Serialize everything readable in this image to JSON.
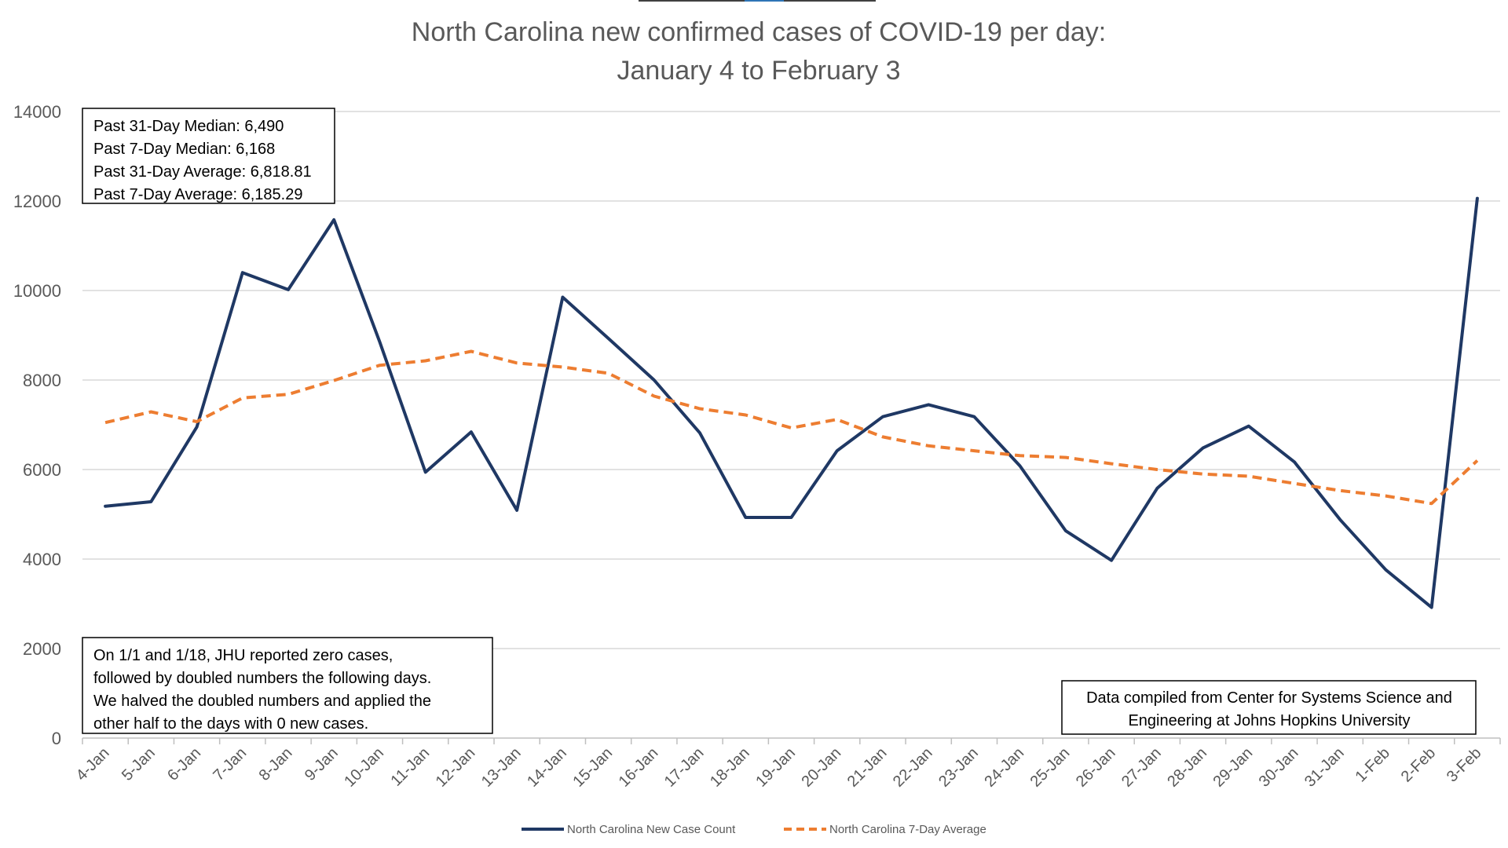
{
  "chart_data": {
    "type": "line",
    "title": [
      "North Carolina new confirmed cases of COVID-19 per day:",
      "January 4 to February 3"
    ],
    "xlabel": "",
    "ylabel": "",
    "ylim": [
      0,
      14000
    ],
    "yticks": [
      0,
      2000,
      4000,
      6000,
      8000,
      10000,
      12000,
      14000
    ],
    "grid": true,
    "legend_position": "bottom",
    "categories": [
      "4-Jan",
      "5-Jan",
      "6-Jan",
      "7-Jan",
      "8-Jan",
      "9-Jan",
      "10-Jan",
      "11-Jan",
      "12-Jan",
      "13-Jan",
      "14-Jan",
      "15-Jan",
      "16-Jan",
      "17-Jan",
      "18-Jan",
      "19-Jan",
      "20-Jan",
      "21-Jan",
      "22-Jan",
      "23-Jan",
      "24-Jan",
      "25-Jan",
      "26-Jan",
      "27-Jan",
      "28-Jan",
      "29-Jan",
      "30-Jan",
      "31-Jan",
      "1-Feb",
      "2-Feb",
      "3-Feb"
    ],
    "series": [
      {
        "name": "North Carolina New Case Count",
        "color": "#1f3864",
        "style": "solid",
        "values": [
          5180,
          5280,
          6950,
          10400,
          10020,
          11580,
          8850,
          5940,
          6840,
          5090,
          9850,
          8930,
          8000,
          6820,
          4930,
          4930,
          6420,
          7180,
          7450,
          7180,
          6080,
          4630,
          3970,
          5580,
          6480,
          6970,
          6170,
          4880,
          3760,
          2920,
          12060
        ]
      },
      {
        "name": "North Carolina 7-Day Average",
        "color": "#ed7d31",
        "style": "dashed",
        "values": [
          7050,
          7290,
          7070,
          7600,
          7680,
          7990,
          8330,
          8430,
          8640,
          8380,
          8290,
          8150,
          7640,
          7360,
          7220,
          6930,
          7120,
          6730,
          6530,
          6420,
          6310,
          6270,
          6130,
          6000,
          5900,
          5850,
          5690,
          5530,
          5410,
          5240,
          6200
        ]
      }
    ]
  },
  "stats_box": {
    "lines": [
      "Past 31-Day Median: 6,490",
      "Past 7-Day Median: 6,168",
      "Past 31-Day Average: 6,818.81",
      "Past 7-Day Average: 6,185.29"
    ]
  },
  "note_box": {
    "lines": [
      "On 1/1 and 1/18, JHU reported zero cases,",
      "followed by doubled numbers the following days.",
      "We halved the doubled numbers and applied the",
      "other half to the days with 0 new cases."
    ]
  },
  "source_box": {
    "lines": [
      "Data compiled from Center for Systems Science and",
      "Engineering at Johns Hopkins University"
    ]
  }
}
